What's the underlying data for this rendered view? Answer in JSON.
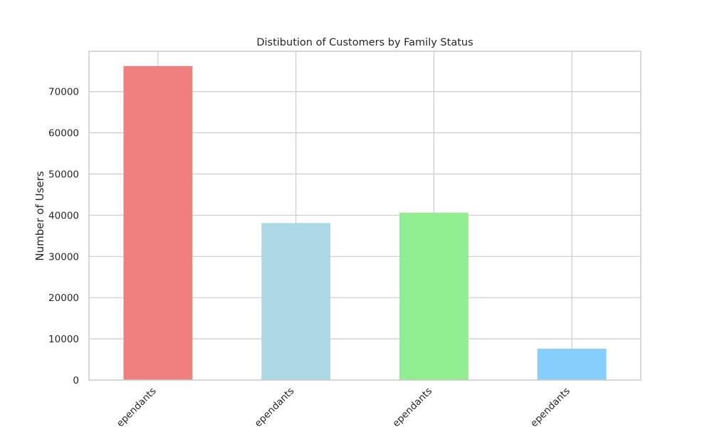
{
  "chart_data": {
    "type": "bar",
    "title": "Distibution of Customers by Family Status",
    "xlabel": "",
    "ylabel": "Number of Users",
    "categories": [
      "ependants",
      "ependants",
      "ependants",
      "ependants"
    ],
    "values": [
      76200,
      38100,
      40600,
      7600
    ],
    "colors": [
      "#f08080",
      "#add8e6",
      "#90ee90",
      "#87cefa"
    ],
    "ylim": [
      0,
      79800
    ],
    "yticks": [
      0,
      10000,
      20000,
      30000,
      40000,
      50000,
      60000,
      70000
    ],
    "ytick_labels": [
      "0",
      "10000",
      "20000",
      "30000",
      "40000",
      "50000",
      "60000",
      "70000"
    ],
    "grid": true,
    "grid_color": "#cccccc",
    "legend": "none"
  }
}
